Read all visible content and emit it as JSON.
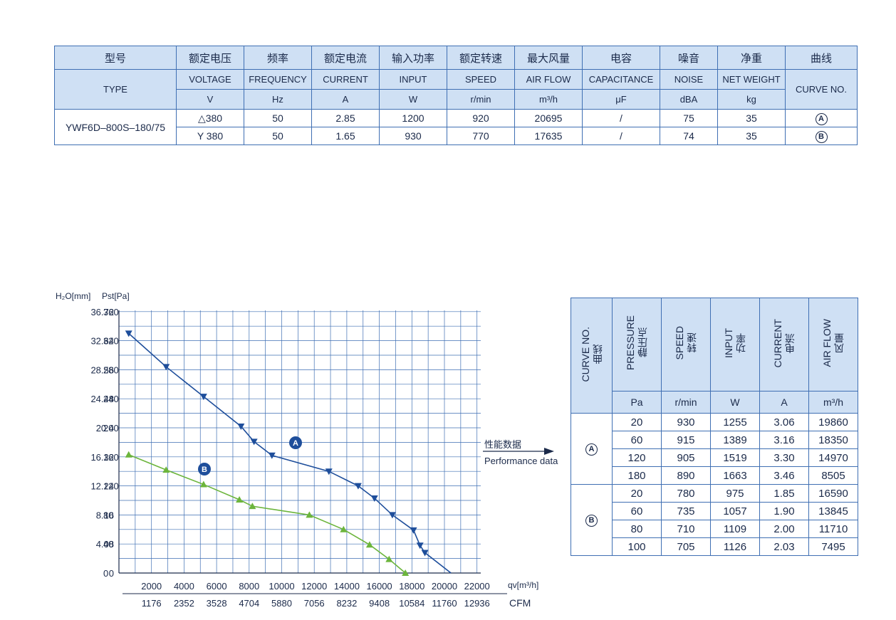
{
  "spec_table": {
    "header_cn": [
      "型号",
      "额定电压",
      "频率",
      "额定电流",
      "输入功率",
      "额定转速",
      "最大风量",
      "电容",
      "噪音",
      "净重",
      "曲线"
    ],
    "type_label": "TYPE",
    "header_en": [
      "VOLTAGE",
      "FREQUENCY",
      "CURRENT",
      "INPUT",
      "SPEED",
      "AIR FLOW",
      "CAPACITANCE",
      "NOISE",
      "NET WEIGHT",
      "CURVE NO."
    ],
    "units": [
      "V",
      "Hz",
      "A",
      "W",
      "r/min",
      "m³/h",
      "μF",
      "dBA",
      "kg"
    ],
    "model": "YWF6D–800S–180/75",
    "rows": [
      {
        "voltage": "△380",
        "frequency": "50",
        "current": "2.85",
        "input": "1200",
        "speed": "920",
        "airflow": "20695",
        "capacitance": "/",
        "noise": "75",
        "weight": "35",
        "curve": "A"
      },
      {
        "voltage": "Y 380",
        "frequency": "50",
        "current": "1.65",
        "input": "930",
        "speed": "770",
        "airflow": "17635",
        "capacitance": "/",
        "noise": "74",
        "weight": "35",
        "curve": "B"
      }
    ]
  },
  "arrow_label": {
    "cn": "性能数据",
    "en": "Performance data"
  },
  "perf_table": {
    "headers": [
      {
        "en": "CURVE NO.",
        "cn": "曲线",
        "unit": ""
      },
      {
        "en": "PRESSURE",
        "cn": "静压点",
        "unit": "Pa"
      },
      {
        "en": "SPEED",
        "cn": "转速",
        "unit": "r/min"
      },
      {
        "en": "INPUT",
        "cn": "功率",
        "unit": "W"
      },
      {
        "en": "CURRENT",
        "cn": "电流",
        "unit": "A"
      },
      {
        "en": "AIR FLOW",
        "cn": "风量",
        "unit": "m³/h"
      }
    ],
    "groups": [
      {
        "curve": "A",
        "rows": [
          {
            "pressure": "20",
            "speed": "930",
            "input": "1255",
            "current": "3.06",
            "airflow": "19860"
          },
          {
            "pressure": "60",
            "speed": "915",
            "input": "1389",
            "current": "3.16",
            "airflow": "18350"
          },
          {
            "pressure": "120",
            "speed": "905",
            "input": "1519",
            "current": "3.30",
            "airflow": "14970"
          },
          {
            "pressure": "180",
            "speed": "890",
            "input": "1663",
            "current": "3.46",
            "airflow": "8505"
          }
        ]
      },
      {
        "curve": "B",
        "rows": [
          {
            "pressure": "20",
            "speed": "780",
            "input": "975",
            "current": "1.85",
            "airflow": "16590"
          },
          {
            "pressure": "60",
            "speed": "735",
            "input": "1057",
            "current": "1.90",
            "airflow": "13845"
          },
          {
            "pressure": "80",
            "speed": "710",
            "input": "1109",
            "current": "2.00",
            "airflow": "11710"
          },
          {
            "pressure": "100",
            "speed": "705",
            "input": "1126",
            "current": "2.03",
            "airflow": "7495"
          }
        ]
      }
    ]
  },
  "chart_data": {
    "type": "line",
    "ylabel_h2o": "H₂O[mm]",
    "ylabel_pst": "Pst[Pa]",
    "xlabel_m3h": "qv[m³/h]",
    "xlabel_cfm": "CFM",
    "xlim": [
      0,
      24000
    ],
    "ylim": [
      0,
      360
    ],
    "grid": true,
    "x_ticks_m3h": [
      2000,
      4000,
      6000,
      8000,
      10000,
      12000,
      14000,
      16000,
      18000,
      20000,
      22000
    ],
    "x_ticks_cfm": [
      "1176",
      "2352",
      "3528",
      "4704",
      "5880",
      "7056",
      "8232",
      "9408",
      "10584",
      "11760",
      "12936"
    ],
    "y_ticks_pa": [
      0,
      40,
      80,
      120,
      160,
      200,
      240,
      280,
      320,
      360
    ],
    "y_ticks_h2o": [
      "0",
      "4.08",
      "8.16",
      "12.24",
      "16.32",
      "20.4",
      "24.48",
      "28.56",
      "32.64",
      "36.72"
    ],
    "series": [
      {
        "name": "A",
        "color": "#1e4e9b",
        "marker": "triangle-down",
        "x": [
          600,
          2900,
          5200,
          7500,
          8300,
          9400,
          12900,
          14700,
          15700,
          16800,
          18100,
          18500,
          18800,
          20400
        ],
        "y": [
          330,
          284,
          243,
          202,
          181,
          162,
          140,
          120,
          103,
          80,
          59,
          38,
          28,
          0
        ],
        "markers": [
          true,
          true,
          true,
          true,
          true,
          true,
          true,
          true,
          true,
          true,
          true,
          true,
          true,
          false
        ]
      },
      {
        "name": "B",
        "color": "#6cb53c",
        "marker": "triangle-up",
        "x": [
          600,
          2900,
          5200,
          7400,
          8200,
          11700,
          13800,
          15400,
          16600,
          17600
        ],
        "y": [
          163,
          142,
          122,
          101,
          92,
          80,
          60,
          39,
          19,
          0
        ],
        "markers": [
          true,
          true,
          true,
          true,
          true,
          true,
          true,
          true,
          true,
          true
        ]
      }
    ]
  }
}
